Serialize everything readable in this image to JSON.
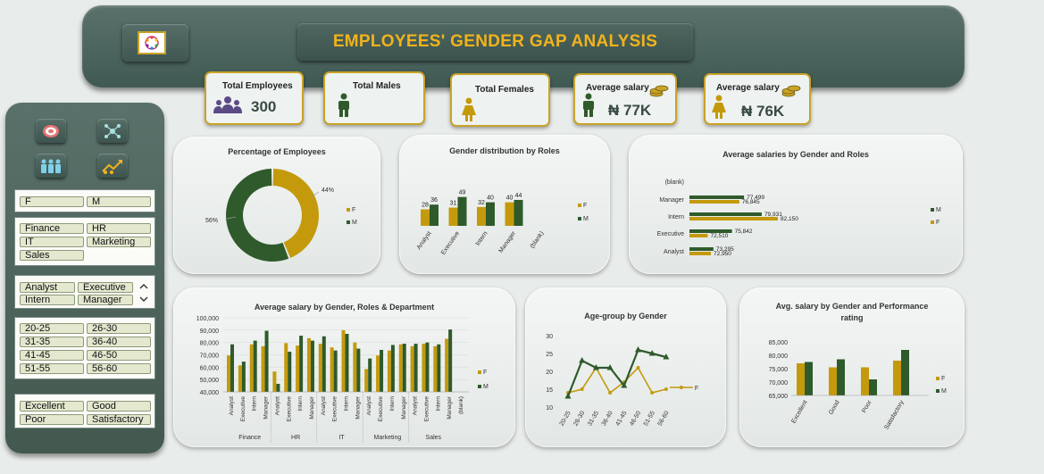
{
  "header": {
    "title": "EMPLOYEES' GENDER GAP ANALYSIS"
  },
  "kpis": {
    "total_employees": {
      "label": "Total Employees",
      "value": "300",
      "icon": "people-group-icon"
    },
    "total_males": {
      "label": "Total Males",
      "icon": "male-person-icon"
    },
    "total_females": {
      "label": "Total Females",
      "icon": "female-person-icon"
    },
    "avg_salary_male": {
      "label": "Average salary",
      "value": "₦ 77K",
      "icon": "coins-icon"
    },
    "avg_salary_female": {
      "label": "Average salary",
      "value": "₦ 76K",
      "icon": "coins-icon"
    }
  },
  "colors": {
    "female": "#c49a0c",
    "male": "#2f5a2b",
    "accent": "#f1b31c"
  },
  "sidebar": {
    "nav": [
      "target-icon",
      "network-icon",
      "team-icon",
      "growth-chart-icon"
    ],
    "gender": [
      "F",
      "M"
    ],
    "department": [
      "Finance",
      "HR",
      "IT",
      "Marketing",
      "Sales"
    ],
    "role": [
      "Analyst",
      "Executive",
      "Intern",
      "Manager"
    ],
    "age_group": [
      "20-25",
      "26-30",
      "31-35",
      "36-40",
      "41-45",
      "46-50",
      "51-55",
      "56-60"
    ],
    "performance": [
      "Excellent",
      "Good",
      "Poor",
      "Satisfactory"
    ]
  },
  "chart_data": [
    {
      "id": "pct",
      "type": "pie",
      "title": "Percentage of Employees",
      "categories": [
        "F",
        "M"
      ],
      "values": [
        44,
        56
      ],
      "labels": [
        "44%",
        "56%"
      ],
      "legend": [
        "F",
        "M"
      ]
    },
    {
      "id": "roles",
      "type": "bar",
      "title": "Gender distribution by Roles",
      "categories": [
        "Analyst",
        "Executive",
        "Intern",
        "Manager",
        "(blank)"
      ],
      "series": [
        {
          "name": "F",
          "values": [
            28,
            31,
            32,
            40,
            null
          ]
        },
        {
          "name": "M",
          "values": [
            36,
            49,
            40,
            44,
            null
          ]
        }
      ],
      "legend": [
        "F",
        "M"
      ]
    },
    {
      "id": "salroles",
      "type": "bar",
      "title": "Average salaries by Gender and Roles",
      "orientation": "horizontal",
      "categories": [
        "(blank)",
        "Manager",
        "Intern",
        "Executive",
        "Analyst"
      ],
      "series": [
        {
          "name": "M",
          "values": [
            null,
            77499,
            79931,
            75842,
            73295
          ]
        },
        {
          "name": "F",
          "values": [
            null,
            76845,
            82150,
            72510,
            72950
          ]
        }
      ],
      "data_labels": {
        "M": [
          null,
          "77,499",
          "79,931",
          "75,842",
          "73,295"
        ],
        "F": [
          null,
          "76,845",
          "82,150",
          "72,510",
          "72,950"
        ]
      },
      "legend": [
        "M",
        "F"
      ]
    },
    {
      "id": "dept",
      "type": "bar",
      "title": "Average salary by Gender, Roles & Department",
      "ylim": [
        40000,
        100000
      ],
      "yticks": [
        "100,000",
        "90,000",
        "80,000",
        "70,000",
        "60,000",
        "50,000",
        "40,000"
      ],
      "departments": [
        "Finance",
        "HR",
        "IT",
        "Marketing",
        "Sales"
      ],
      "roles": [
        "Analyst",
        "Executive",
        "Intern",
        "Manager"
      ],
      "extra_category": "(blank)",
      "series": [
        {
          "name": "F",
          "values": [
            69500,
            61500,
            78500,
            77000,
            56500,
            79500,
            77500,
            83500,
            79000,
            76000,
            90000,
            80000,
            58500,
            69500,
            73500,
            78500,
            77000,
            79000,
            77000,
            83000,
            null
          ]
        },
        {
          "name": "M",
          "values": [
            78500,
            64500,
            81500,
            89500,
            46500,
            72500,
            85500,
            81500,
            85000,
            73500,
            87000,
            75000,
            67000,
            74000,
            78000,
            79000,
            79000,
            80000,
            78500,
            90500,
            null
          ]
        }
      ],
      "legend": [
        "F",
        "M"
      ]
    },
    {
      "id": "age",
      "type": "line",
      "title": "Age-group by Gender",
      "categories": [
        "20-25",
        "26-30",
        "31-35",
        "36-40",
        "41-45",
        "46-50",
        "51-55",
        "56-60"
      ],
      "ylim": [
        10,
        30
      ],
      "yticks": [
        "30",
        "25",
        "20",
        "15",
        "10"
      ],
      "series": [
        {
          "name": "F",
          "values": [
            14,
            15,
            21,
            14,
            17,
            21,
            14,
            15
          ]
        },
        {
          "name": "M",
          "values": [
            13,
            23,
            21,
            21,
            16,
            26,
            25,
            24
          ]
        }
      ],
      "end_label": "F"
    },
    {
      "id": "perf",
      "type": "bar",
      "title": "Avg. salary by Gender and  Performance rating",
      "title_lines": [
        "Avg. salary by Gender and  Performance",
        "rating"
      ],
      "categories": [
        "Excellent",
        "Good",
        "Poor",
        "Satisfactory"
      ],
      "ylim": [
        65000,
        85000
      ],
      "yticks": [
        "85,000",
        "80,000",
        "75,000",
        "70,000",
        "65,000"
      ],
      "series": [
        {
          "name": "F",
          "values": [
            77000,
            75500,
            75500,
            78000
          ]
        },
        {
          "name": "M",
          "values": [
            77500,
            78500,
            71000,
            82000
          ]
        }
      ],
      "legend": [
        "F",
        "M"
      ]
    }
  ]
}
